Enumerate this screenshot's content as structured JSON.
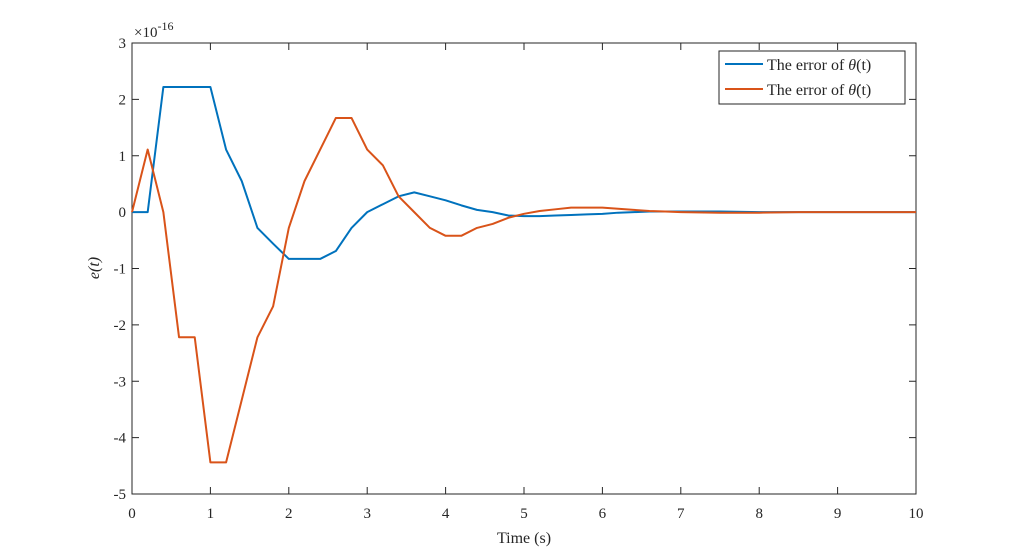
{
  "chart_data": {
    "type": "line",
    "title": "",
    "xlabel": "Time (s)",
    "ylabel": "e(t)",
    "y_exponent_label": "×10",
    "y_exponent_power": "-16",
    "xlim": [
      0,
      10
    ],
    "ylim": [
      -5,
      3
    ],
    "x_ticks": [
      0,
      1,
      2,
      3,
      4,
      5,
      6,
      7,
      8,
      9,
      10
    ],
    "x_tick_labels": [
      "0",
      "1",
      "2",
      "3",
      "4",
      "5",
      "6",
      "7",
      "8",
      "9",
      "10"
    ],
    "y_ticks": [
      -5,
      -4,
      -3,
      -2,
      -1,
      0,
      1,
      2,
      3
    ],
    "y_tick_labels": [
      "-5",
      "-4",
      "-3",
      "-2",
      "-1",
      "0",
      "1",
      "2",
      "3"
    ],
    "grid": false,
    "legend_position": "top-right",
    "series": [
      {
        "name": "The error of θ(t)",
        "legend_prefix": "The error of ",
        "legend_symbol": "θ",
        "legend_suffix": "(t)",
        "color": "#0072BD",
        "x": [
          0,
          0.2,
          0.4,
          0.6,
          0.8,
          1.0,
          1.2,
          1.4,
          1.6,
          1.8,
          2.0,
          2.2,
          2.4,
          2.6,
          2.8,
          3.0,
          3.2,
          3.4,
          3.6,
          3.8,
          4.0,
          4.2,
          4.4,
          4.6,
          4.8,
          5.0,
          5.2,
          5.4,
          5.6,
          5.8,
          6.0,
          6.2,
          6.4,
          6.6,
          6.8,
          7.0,
          7.5,
          8.0,
          8.5,
          9.0,
          9.5,
          10.0
        ],
        "y": [
          0,
          0,
          2.22,
          2.22,
          2.22,
          2.22,
          1.11,
          0.55,
          -0.28,
          -0.56,
          -0.83,
          -0.83,
          -0.83,
          -0.69,
          -0.28,
          0,
          0.14,
          0.28,
          0.35,
          0.28,
          0.21,
          0.12,
          0.04,
          0,
          -0.06,
          -0.07,
          -0.07,
          -0.06,
          -0.05,
          -0.04,
          -0.03,
          -0.01,
          0,
          0.01,
          0.01,
          0.01,
          0.01,
          0,
          0,
          0,
          0,
          0
        ]
      },
      {
        "name": "The error of θ̇(t)",
        "legend_prefix": "The error of ",
        "legend_symbol": "θ̇",
        "legend_suffix": "(t)",
        "color": "#D95319",
        "x": [
          0,
          0.2,
          0.4,
          0.6,
          0.8,
          1.0,
          1.2,
          1.4,
          1.6,
          1.8,
          2.0,
          2.2,
          2.4,
          2.6,
          2.8,
          3.0,
          3.2,
          3.4,
          3.6,
          3.8,
          4.0,
          4.2,
          4.4,
          4.6,
          4.8,
          5.0,
          5.2,
          5.4,
          5.6,
          5.8,
          6.0,
          6.2,
          6.4,
          6.6,
          6.8,
          7.0,
          7.5,
          8.0,
          8.5,
          9.0,
          9.5,
          10.0
        ],
        "y": [
          0,
          1.11,
          0,
          -2.22,
          -2.22,
          -4.44,
          -4.44,
          -3.33,
          -2.22,
          -1.67,
          -0.28,
          0.55,
          1.11,
          1.67,
          1.67,
          1.11,
          0.83,
          0.28,
          0,
          -0.28,
          -0.42,
          -0.42,
          -0.28,
          -0.21,
          -0.1,
          -0.03,
          0.02,
          0.05,
          0.08,
          0.08,
          0.08,
          0.06,
          0.04,
          0.02,
          0.01,
          0,
          -0.01,
          -0.01,
          0,
          0,
          0,
          0
        ]
      }
    ]
  }
}
